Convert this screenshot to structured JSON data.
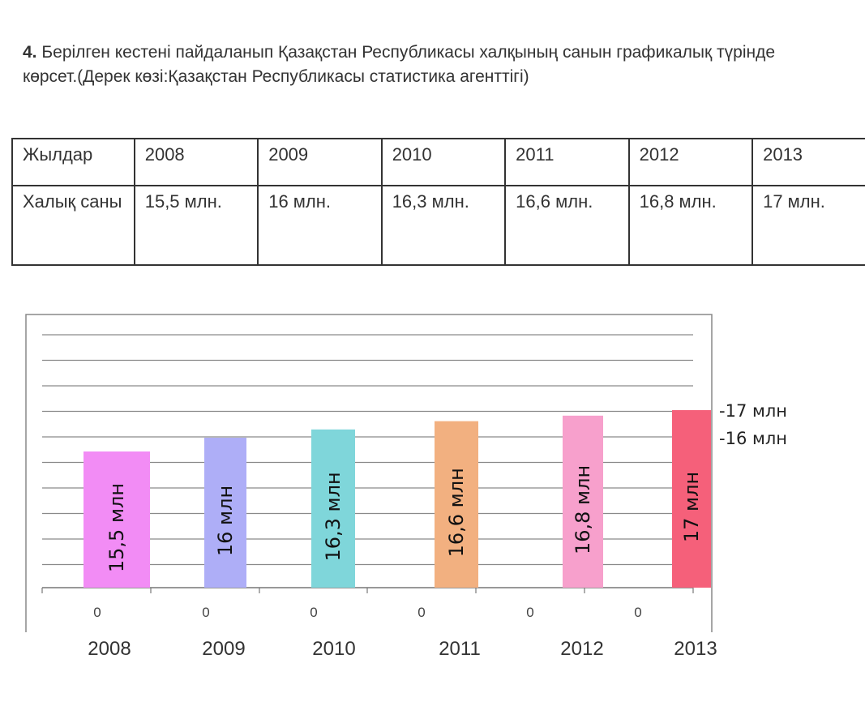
{
  "task": {
    "number": "4.",
    "text": "Берілген кестені пайдаланып Қазақстан Республикасы халқының  санын графикалық түрінде көрсет.(Дерек көзі:Қазақстан Республикасы статистика агенттігі)"
  },
  "table": {
    "header_label": "Жылдар",
    "years": [
      "2008",
      "2009",
      "2010",
      "2011",
      "2012",
      "2013"
    ],
    "row_label": "Халық саны",
    "values": [
      "15,5 млн.",
      "16 млн.",
      "16,3 млн.",
      "16,6 млн.",
      "16,8 млн.",
      "17 млн."
    ]
  },
  "chart_data": {
    "type": "bar",
    "categories": [
      "2008",
      "2009",
      "2010",
      "2011",
      "2012",
      "2013"
    ],
    "values": [
      15.5,
      16,
      16.3,
      16.6,
      16.8,
      17
    ],
    "bar_labels": [
      "15,5 млн",
      "16 млн",
      "16,3 млн",
      "16,6 млн",
      "16,8 млн",
      "17 млн"
    ],
    "zero_labels": [
      "0",
      "0",
      "0",
      "0",
      "0",
      "0"
    ],
    "side_ticks": [
      {
        "label": "-17 млн",
        "value": 17
      },
      {
        "label": "-16 млн",
        "value": 16
      }
    ],
    "colors": [
      "#f28cf5",
      "#aeaef7",
      "#7fd6da",
      "#f2b080",
      "#f7a0cc",
      "#f5607a"
    ],
    "grid": true,
    "gridline_count": 10,
    "legend": "none"
  }
}
